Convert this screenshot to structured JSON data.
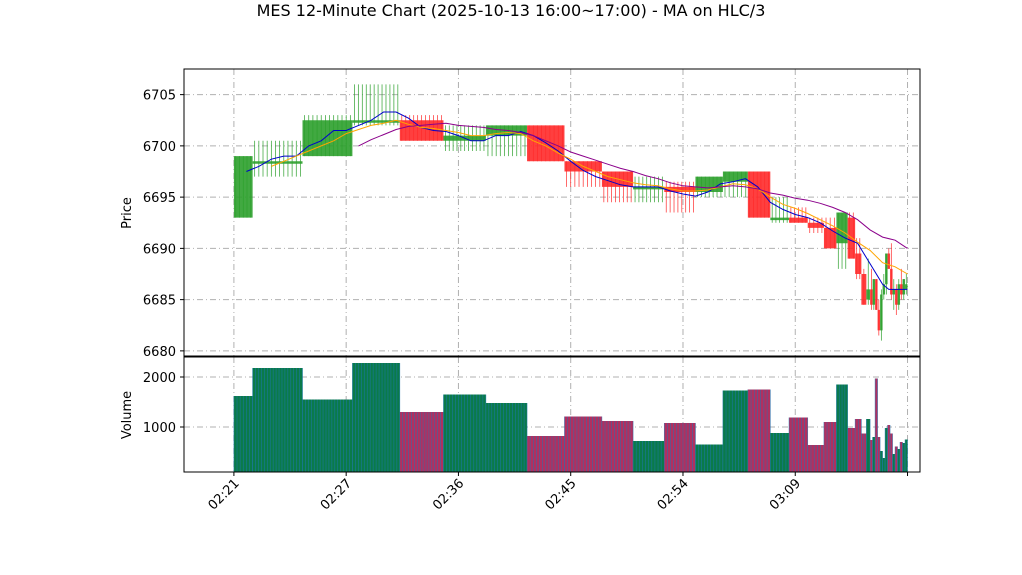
{
  "chart_data": {
    "type": "candlestick",
    "title": "MES 12-Minute Chart (2025-10-13 16:00~17:00) - MA on HLC/3",
    "price_panel": {
      "ylabel": "Price",
      "ylim": [
        6679.5,
        6707.5
      ],
      "yticks": [
        6680,
        6685,
        6690,
        6695,
        6700,
        6705
      ],
      "grid": true
    },
    "volume_panel": {
      "ylabel": "Volume",
      "ylim": [
        100,
        2400
      ],
      "yticks": [
        1000,
        2000
      ],
      "grid": true
    },
    "xaxis": {
      "xlim": [
        -1,
        58
      ],
      "ticks": [
        {
          "i": 3,
          "label": "02:21"
        },
        {
          "i": 12,
          "label": "02:27"
        },
        {
          "i": 21,
          "label": "02:36"
        },
        {
          "i": 30,
          "label": "02:45"
        },
        {
          "i": 39,
          "label": "02:54"
        },
        {
          "i": 48,
          "label": "03:09"
        },
        {
          "i": 57,
          "label": ""
        }
      ]
    },
    "colors": {
      "up": "#2ca02c",
      "down": "#ff2a2a",
      "ma_fast": "#0000cc",
      "ma_mid": "#ffa500",
      "ma_slow": "#8b008b",
      "vol_up": "#0a7a4a",
      "vol_down": "#b03060",
      "vol_edge": "#1f77b4"
    },
    "candles": [
      {
        "start": 3.0,
        "end": 4.5,
        "o": 6693,
        "h": 6699,
        "l": 6693,
        "c": 6699,
        "v": 1620
      },
      {
        "start": 4.5,
        "end": 8.5,
        "o": 6698.5,
        "h": 6700.5,
        "l": 6697,
        "c": 6698.5,
        "v": 2180
      },
      {
        "start": 8.5,
        "end": 12.5,
        "o": 6699,
        "h": 6703,
        "l": 6699,
        "c": 6702.5,
        "v": 1550
      },
      {
        "start": 12.5,
        "end": 16.3,
        "o": 6702.5,
        "h": 6706,
        "l": 6702,
        "c": 6702.5,
        "v": 2280
      },
      {
        "start": 16.3,
        "end": 19.8,
        "o": 6702.5,
        "h": 6703,
        "l": 6700.5,
        "c": 6700.5,
        "v": 1300
      },
      {
        "start": 19.8,
        "end": 23.2,
        "o": 6700.5,
        "h": 6702,
        "l": 6699.5,
        "c": 6701,
        "v": 1650
      },
      {
        "start": 23.2,
        "end": 26.5,
        "o": 6701,
        "h": 6702,
        "l": 6699,
        "c": 6702,
        "v": 1480
      },
      {
        "start": 26.5,
        "end": 29.5,
        "o": 6702,
        "h": 6702,
        "l": 6698.5,
        "c": 6698.5,
        "v": 820
      },
      {
        "start": 29.5,
        "end": 32.5,
        "o": 6698.5,
        "h": 6698.5,
        "l": 6696,
        "c": 6697.5,
        "v": 1210
      },
      {
        "start": 32.5,
        "end": 35.0,
        "o": 6697.5,
        "h": 6697.5,
        "l": 6694.5,
        "c": 6696,
        "v": 1120
      },
      {
        "start": 35.0,
        "end": 37.5,
        "o": 6696,
        "h": 6697,
        "l": 6694.5,
        "c": 6696,
        "v": 720
      },
      {
        "start": 37.5,
        "end": 40.0,
        "o": 6696,
        "h": 6696.5,
        "l": 6693.5,
        "c": 6695.5,
        "v": 1080
      },
      {
        "start": 40.0,
        "end": 42.2,
        "o": 6695.5,
        "h": 6697,
        "l": 6695,
        "c": 6697,
        "v": 650
      },
      {
        "start": 42.2,
        "end": 44.2,
        "o": 6696.5,
        "h": 6697.5,
        "l": 6695,
        "c": 6697.5,
        "v": 1730
      },
      {
        "start": 44.2,
        "end": 46.0,
        "o": 6697.5,
        "h": 6697.5,
        "l": 6693,
        "c": 6693,
        "v": 1750
      },
      {
        "start": 46.0,
        "end": 47.5,
        "o": 6693,
        "h": 6695,
        "l": 6692.5,
        "c": 6693,
        "v": 880
      },
      {
        "start": 47.5,
        "end": 49.0,
        "o": 6693,
        "h": 6694,
        "l": 6692.5,
        "c": 6692.5,
        "v": 1190
      },
      {
        "start": 49.0,
        "end": 50.3,
        "o": 6692.5,
        "h": 6693,
        "l": 6691.5,
        "c": 6692,
        "v": 640
      },
      {
        "start": 50.3,
        "end": 51.3,
        "o": 6692,
        "h": 6693,
        "l": 6690,
        "c": 6690,
        "v": 1100
      },
      {
        "start": 51.3,
        "end": 52.2,
        "o": 6690.5,
        "h": 6693.5,
        "l": 6688,
        "c": 6693.5,
        "v": 1850
      },
      {
        "start": 52.2,
        "end": 52.8,
        "o": 6693,
        "h": 6693.5,
        "l": 6689,
        "c": 6689,
        "v": 980
      },
      {
        "start": 52.8,
        "end": 53.3,
        "o": 6689.5,
        "h": 6691,
        "l": 6687,
        "c": 6687.5,
        "v": 1160
      },
      {
        "start": 53.3,
        "end": 53.7,
        "o": 6687.5,
        "h": 6688,
        "l": 6684.5,
        "c": 6684.5,
        "v": 870
      },
      {
        "start": 53.7,
        "end": 54.0,
        "o": 6685,
        "h": 6689,
        "l": 6684.5,
        "c": 6686,
        "v": 1160
      },
      {
        "start": 54.0,
        "end": 54.2,
        "o": 6686,
        "h": 6688,
        "l": 6684,
        "c": 6684.5,
        "v": 740
      },
      {
        "start": 54.2,
        "end": 54.4,
        "o": 6684.5,
        "h": 6687,
        "l": 6684,
        "c": 6687,
        "v": 800
      },
      {
        "start": 54.4,
        "end": 54.6,
        "o": 6687,
        "h": 6687,
        "l": 6684,
        "c": 6684,
        "v": 1970
      },
      {
        "start": 54.6,
        "end": 54.8,
        "o": 6684,
        "h": 6685,
        "l": 6681.5,
        "c": 6682,
        "v": 800
      },
      {
        "start": 54.8,
        "end": 55.0,
        "o": 6682,
        "h": 6686,
        "l": 6681,
        "c": 6685.5,
        "v": 520
      },
      {
        "start": 55.0,
        "end": 55.2,
        "o": 6685.5,
        "h": 6687.5,
        "l": 6685,
        "c": 6686.5,
        "v": 380
      },
      {
        "start": 55.2,
        "end": 55.4,
        "o": 6686.5,
        "h": 6689.5,
        "l": 6685.5,
        "c": 6689.5,
        "v": 980
      },
      {
        "start": 55.4,
        "end": 55.6,
        "o": 6689.5,
        "h": 6690,
        "l": 6688,
        "c": 6688,
        "v": 1040
      },
      {
        "start": 55.6,
        "end": 55.8,
        "o": 6688,
        "h": 6690.5,
        "l": 6685,
        "c": 6685.5,
        "v": 870
      },
      {
        "start": 55.8,
        "end": 56.0,
        "o": 6685.5,
        "h": 6687,
        "l": 6684,
        "c": 6686,
        "v": 460
      },
      {
        "start": 56.0,
        "end": 56.2,
        "o": 6686,
        "h": 6686.5,
        "l": 6683.5,
        "c": 6684.5,
        "v": 610
      },
      {
        "start": 56.2,
        "end": 56.4,
        "o": 6684.5,
        "h": 6687,
        "l": 6684,
        "c": 6686.5,
        "v": 560
      },
      {
        "start": 56.4,
        "end": 56.6,
        "o": 6686.5,
        "h": 6688,
        "l": 6685,
        "c": 6685.5,
        "v": 700
      },
      {
        "start": 56.6,
        "end": 56.8,
        "o": 6685.5,
        "h": 6687,
        "l": 6685,
        "c": 6687,
        "v": 680
      },
      {
        "start": 56.8,
        "end": 57.0,
        "o": 6686,
        "h": 6687.5,
        "l": 6685.5,
        "c": 6686.5,
        "v": 750
      }
    ],
    "ma_lines": [
      {
        "key": "ma_fast",
        "points": [
          [
            4,
            6697.5
          ],
          [
            5,
            6698
          ],
          [
            6,
            6698.7
          ],
          [
            7,
            6699
          ],
          [
            8,
            6699
          ],
          [
            9,
            6700
          ],
          [
            10,
            6700.5
          ],
          [
            11,
            6701.5
          ],
          [
            12,
            6701.5
          ],
          [
            13,
            6702
          ],
          [
            14,
            6702.5
          ],
          [
            15,
            6703.3
          ],
          [
            16,
            6703.3
          ],
          [
            17,
            6702.7
          ],
          [
            18,
            6701.8
          ],
          [
            19,
            6701.5
          ],
          [
            20,
            6701.4
          ],
          [
            21,
            6701
          ],
          [
            22,
            6700.5
          ],
          [
            23,
            6700.5
          ],
          [
            24,
            6701
          ],
          [
            25,
            6701
          ],
          [
            26,
            6701.4
          ],
          [
            27,
            6701
          ],
          [
            28,
            6700.3
          ],
          [
            29,
            6699.5
          ],
          [
            30,
            6698.5
          ],
          [
            31,
            6697.6
          ],
          [
            32,
            6697
          ],
          [
            33,
            6696.6
          ],
          [
            34,
            6696.2
          ],
          [
            35,
            6696
          ],
          [
            36,
            6696
          ],
          [
            37,
            6696
          ],
          [
            38,
            6695.6
          ],
          [
            39,
            6695.3
          ],
          [
            40,
            6695.1
          ],
          [
            41,
            6695.5
          ],
          [
            42,
            6696.3
          ],
          [
            43,
            6696.5
          ],
          [
            44,
            6696.8
          ],
          [
            45,
            6696
          ],
          [
            46,
            6694.5
          ],
          [
            47,
            6693.8
          ],
          [
            48,
            6693.3
          ],
          [
            49,
            6693
          ],
          [
            50,
            6692.5
          ],
          [
            51,
            6691.7
          ],
          [
            52,
            6691
          ],
          [
            53,
            6690.5
          ],
          [
            54,
            6688.5
          ],
          [
            55,
            6686.5
          ],
          [
            55.5,
            6686
          ],
          [
            56,
            6686
          ],
          [
            57,
            6686
          ]
        ]
      },
      {
        "key": "ma_mid",
        "points": [
          [
            6,
            6698
          ],
          [
            7,
            6698.5
          ],
          [
            8,
            6699
          ],
          [
            9,
            6699.5
          ],
          [
            10,
            6700
          ],
          [
            11,
            6700.5
          ],
          [
            12,
            6701.2
          ],
          [
            13,
            6701.6
          ],
          [
            14,
            6702
          ],
          [
            15,
            6702.2
          ],
          [
            16,
            6702.5
          ],
          [
            17,
            6702.1
          ],
          [
            18,
            6701.8
          ],
          [
            19,
            6701.7
          ],
          [
            20,
            6701.5
          ],
          [
            21,
            6701.3
          ],
          [
            22,
            6701
          ],
          [
            23,
            6701
          ],
          [
            24,
            6701.2
          ],
          [
            25,
            6701.3
          ],
          [
            26,
            6701.2
          ],
          [
            27,
            6700.5
          ],
          [
            28,
            6700
          ],
          [
            29,
            6699.3
          ],
          [
            30,
            6698.7
          ],
          [
            31,
            6698
          ],
          [
            32,
            6697.5
          ],
          [
            33,
            6697
          ],
          [
            34,
            6696.7
          ],
          [
            35,
            6696.4
          ],
          [
            36,
            6696.2
          ],
          [
            37,
            6696.1
          ],
          [
            38,
            6695.8
          ],
          [
            39,
            6695.6
          ],
          [
            40,
            6695.6
          ],
          [
            41,
            6695.7
          ],
          [
            42,
            6696
          ],
          [
            43,
            6696.3
          ],
          [
            44,
            6696.2
          ],
          [
            45,
            6695.8
          ],
          [
            46,
            6695
          ],
          [
            47,
            6694.3
          ],
          [
            48,
            6693.9
          ],
          [
            49,
            6693.4
          ],
          [
            50,
            6692.8
          ],
          [
            51,
            6692.2
          ],
          [
            52,
            6691.5
          ],
          [
            53,
            6690.6
          ],
          [
            54,
            6689.8
          ],
          [
            55,
            6688.6
          ],
          [
            56,
            6688.2
          ],
          [
            57,
            6687.5
          ]
        ]
      },
      {
        "key": "ma_slow",
        "points": [
          [
            13,
            6700
          ],
          [
            14,
            6700.6
          ],
          [
            15,
            6701.1
          ],
          [
            16,
            6701.6
          ],
          [
            17,
            6701.9
          ],
          [
            18,
            6702
          ],
          [
            19,
            6702.1
          ],
          [
            20,
            6702.2
          ],
          [
            21,
            6702
          ],
          [
            22,
            6701.9
          ],
          [
            23,
            6701.8
          ],
          [
            24,
            6701.6
          ],
          [
            25,
            6701.5
          ],
          [
            26,
            6701.3
          ],
          [
            27,
            6701
          ],
          [
            28,
            6700.5
          ],
          [
            29,
            6700
          ],
          [
            30,
            6699.4
          ],
          [
            31,
            6699
          ],
          [
            32,
            6698.6
          ],
          [
            33,
            6698.2
          ],
          [
            34,
            6697.8
          ],
          [
            35,
            6697.5
          ],
          [
            36,
            6697.1
          ],
          [
            37,
            6696.8
          ],
          [
            38,
            6696.4
          ],
          [
            39,
            6696.1
          ],
          [
            40,
            6696
          ],
          [
            41,
            6695.9
          ],
          [
            42,
            6696
          ],
          [
            43,
            6696.1
          ],
          [
            44,
            6696
          ],
          [
            45,
            6695.8
          ],
          [
            46,
            6695.4
          ],
          [
            47,
            6695.2
          ],
          [
            48,
            6694.9
          ],
          [
            49,
            6694.7
          ],
          [
            50,
            6694.4
          ],
          [
            51,
            6694
          ],
          [
            52,
            6693.5
          ],
          [
            53,
            6692.8
          ],
          [
            54,
            6691.8
          ],
          [
            55,
            6691.1
          ],
          [
            56,
            6690.8
          ],
          [
            57,
            6690
          ]
        ]
      }
    ]
  }
}
